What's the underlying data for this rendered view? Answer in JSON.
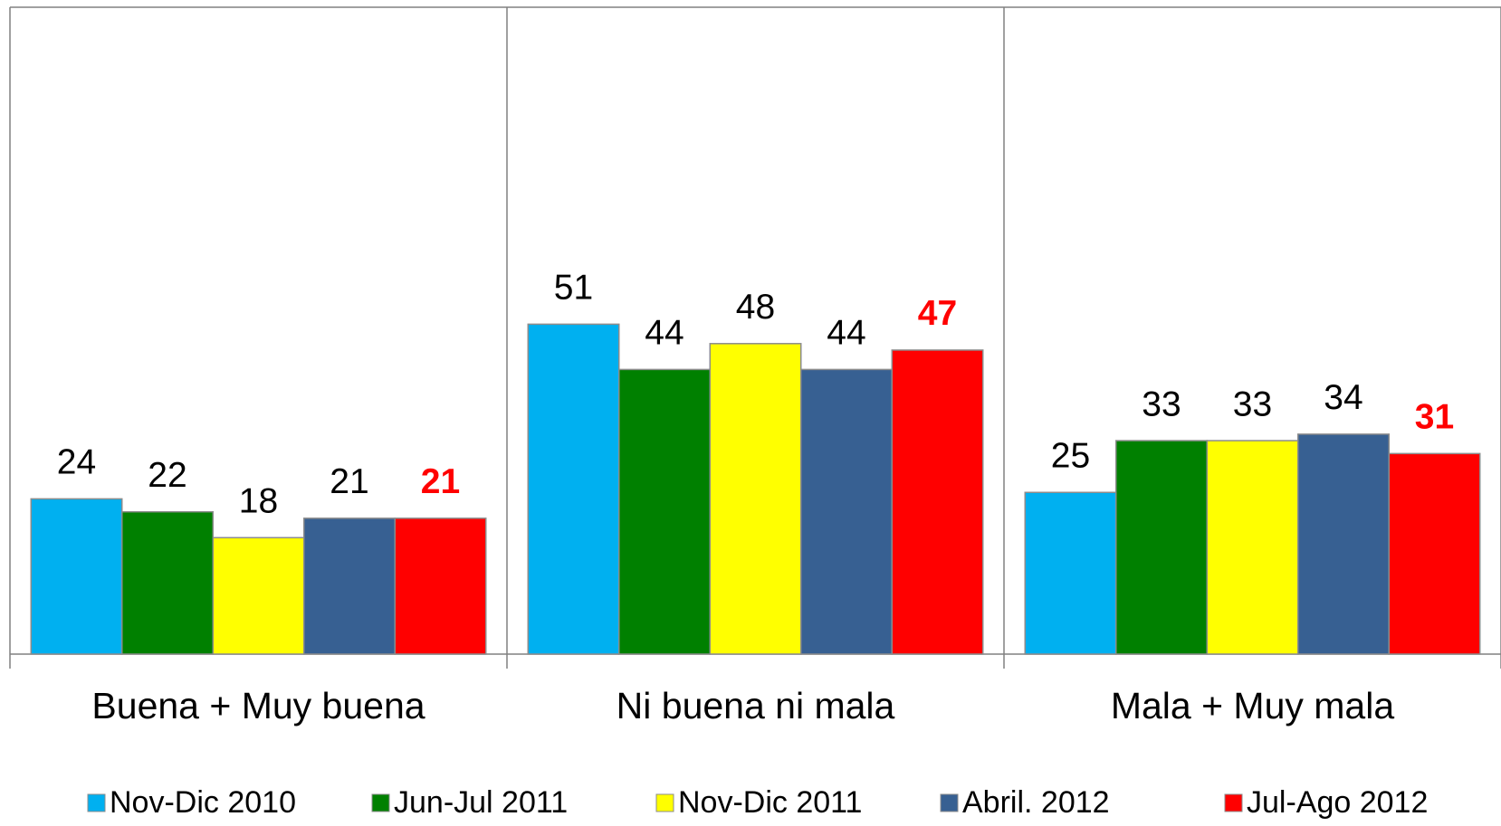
{
  "chart_data": {
    "type": "bar",
    "categories": [
      "Buena + Muy buena",
      "Ni buena ni mala",
      "Mala + Muy mala"
    ],
    "ylim": [
      0,
      100
    ],
    "series": [
      {
        "name": "Nov-Dic 2010",
        "color": "#00b0f0",
        "label_color": "#000000",
        "label_weight": "normal",
        "values": [
          24,
          51,
          25
        ]
      },
      {
        "name": "Jun-Jul 2011",
        "color": "#008000",
        "label_color": "#000000",
        "label_weight": "normal",
        "values": [
          22,
          44,
          33
        ]
      },
      {
        "name": "Nov-Dic 2011",
        "color": "#ffff00",
        "label_color": "#000000",
        "label_weight": "normal",
        "values": [
          18,
          48,
          33
        ]
      },
      {
        "name": "Abril. 2012",
        "color": "#376092",
        "label_color": "#000000",
        "label_weight": "normal",
        "values": [
          21,
          44,
          34
        ]
      },
      {
        "name": "Jul-Ago 2012",
        "color": "#ff0000",
        "label_color": "#ff0000",
        "label_weight": "bold",
        "values": [
          21,
          47,
          31
        ]
      }
    ]
  }
}
